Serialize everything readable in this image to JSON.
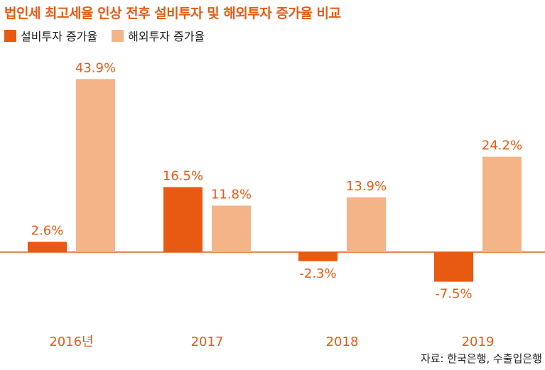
{
  "title": "법인세 최고세율 인상 전후 설비투자 및 해외투자 증가율 비교",
  "source": "자료: 한국은행, 수출입은행",
  "colors": {
    "accent": "#e85a12",
    "domestic": "#e85a12",
    "overseas": "#f4b488",
    "axis": "#e85a12"
  },
  "chart_data": {
    "type": "bar",
    "title": "법인세 최고세율 인상 전후 설비투자 및 해외투자 증가율 비교",
    "categories": [
      "2016년",
      "2017",
      "2018",
      "2019"
    ],
    "series": [
      {
        "name": "설비투자 증가율",
        "values": [
          2.6,
          16.5,
          -2.3,
          -7.5
        ],
        "labels": [
          "2.6%",
          "16.5%",
          "-2.3%",
          "-7.5%"
        ]
      },
      {
        "name": "해외투자 증가율",
        "values": [
          43.9,
          11.8,
          13.9,
          24.2
        ],
        "labels": [
          "43.9%",
          "11.8%",
          "13.9%",
          "24.2%"
        ]
      }
    ],
    "ylim": [
      -10,
      45
    ],
    "grid": false,
    "legend": "top-left"
  }
}
